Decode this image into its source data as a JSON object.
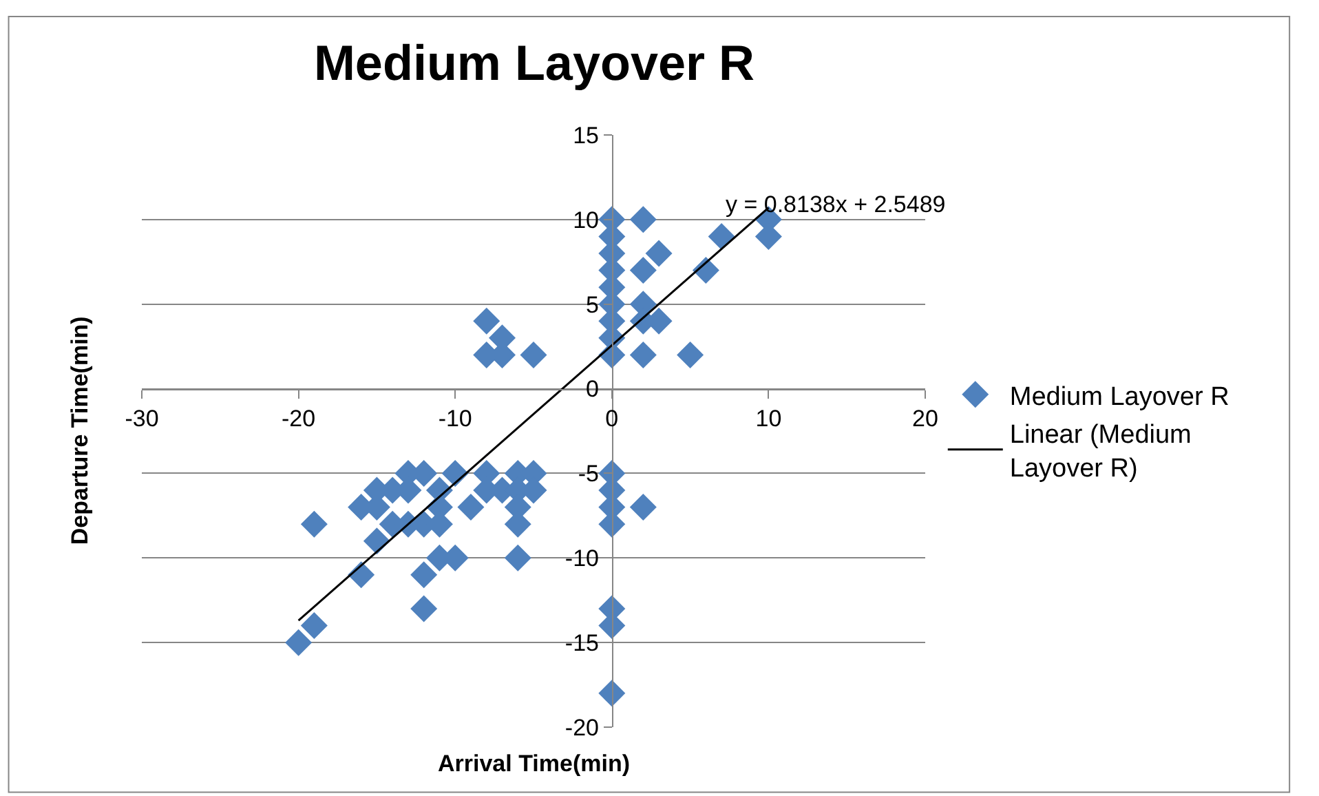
{
  "chart_data": {
    "type": "scatter",
    "title": "Medium Layover R",
    "xlabel": "Arrival Time(min)",
    "ylabel": "Departure Time(min)",
    "annotations": [
      "y = 0.8138x + 2.5489"
    ],
    "xlim": [
      -30,
      20
    ],
    "xticks": [
      -30,
      -20,
      -10,
      0,
      10,
      20
    ],
    "ylim": [
      -20,
      15
    ],
    "yticks": [
      -20,
      -15,
      -10,
      -5,
      0,
      5,
      10,
      15
    ],
    "grid": "y",
    "legend": "right",
    "series": [
      {
        "name": "Medium Layover R",
        "color": "#4f81bd",
        "marker": "diamond",
        "x": [
          0,
          0,
          0,
          0,
          0,
          0,
          0,
          0,
          0,
          2,
          2,
          2,
          2,
          2,
          3,
          3,
          5,
          6,
          7,
          10,
          10,
          0,
          0,
          0,
          0,
          2,
          0,
          0,
          0,
          -8,
          -7,
          -8,
          -7,
          -5,
          -20,
          -19,
          -19,
          -16,
          -16,
          -15,
          -15,
          -15,
          -14,
          -14,
          -13,
          -13,
          -13,
          -12,
          -12,
          -12,
          -12,
          -11,
          -11,
          -11,
          -11,
          -10,
          -10,
          -9,
          -8,
          -8,
          -7,
          -6,
          -6,
          -6,
          -6,
          -6,
          -5,
          -5
        ],
        "values": [
          10,
          9,
          8,
          7,
          6,
          5,
          4,
          3,
          2,
          10,
          7,
          5,
          4,
          2,
          8,
          4,
          2,
          7,
          9,
          10,
          9,
          -5,
          -6,
          -7,
          -8,
          -7,
          -13,
          -14,
          -18,
          4,
          3,
          2,
          2,
          2,
          -15,
          -14,
          -8,
          -7,
          -11,
          -6,
          -7,
          -9,
          -6,
          -8,
          -5,
          -6,
          -8,
          -5,
          -8,
          -11,
          -13,
          -6,
          -7,
          -8,
          -10,
          -5,
          -10,
          -7,
          -5,
          -6,
          -6,
          -5,
          -6,
          -7,
          -8,
          -10,
          -5,
          -6
        ]
      },
      {
        "name": "Linear (Medium Layover R)",
        "color": "#000000",
        "type": "line",
        "line_style": "solid",
        "x": [
          -20,
          10
        ],
        "values": [
          -13.7,
          10.7
        ]
      }
    ]
  }
}
